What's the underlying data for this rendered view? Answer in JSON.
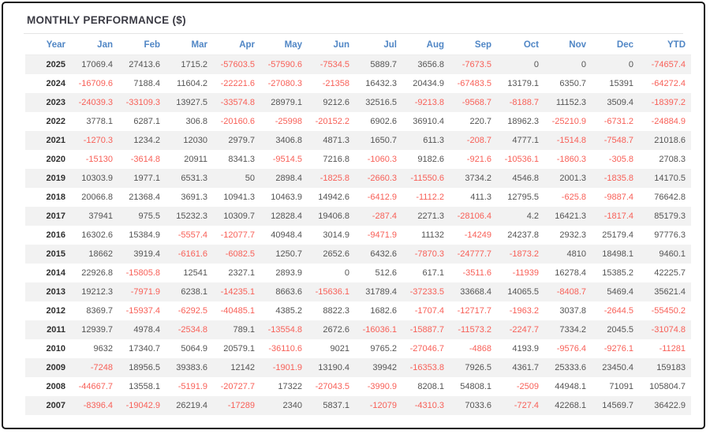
{
  "title": "MONTHLY PERFORMANCE ($)",
  "colors": {
    "header_text": "#5086c5",
    "negative_value": "#f86058",
    "positive_value": "#545454",
    "year_text": "#2f2f2f",
    "row_stripe": "#f2f2f2",
    "frame_border": "#161616"
  },
  "table": {
    "columns": [
      "Year",
      "Jan",
      "Feb",
      "Mar",
      "Apr",
      "May",
      "Jun",
      "Jul",
      "Aug",
      "Sep",
      "Oct",
      "Nov",
      "Dec",
      "YTD"
    ],
    "rows": [
      {
        "year": "2025",
        "values": [
          "17069.4",
          "27413.6",
          "1715.2",
          "-57603.5",
          "-57590.6",
          "-7534.5",
          "5889.7",
          "3656.8",
          "-7673.5",
          "0",
          "0",
          "0",
          "-74657.4"
        ]
      },
      {
        "year": "2024",
        "values": [
          "-16709.6",
          "7188.4",
          "11604.2",
          "-22221.6",
          "-27080.3",
          "-21358",
          "16432.3",
          "20434.9",
          "-67483.5",
          "13179.1",
          "6350.7",
          "15391",
          "-64272.4"
        ]
      },
      {
        "year": "2023",
        "values": [
          "-24039.3",
          "-33109.3",
          "13927.5",
          "-33574.8",
          "28979.1",
          "9212.6",
          "32516.5",
          "-9213.8",
          "-9568.7",
          "-8188.7",
          "11152.3",
          "3509.4",
          "-18397.2"
        ]
      },
      {
        "year": "2022",
        "values": [
          "3778.1",
          "6287.1",
          "306.8",
          "-20160.6",
          "-25998",
          "-20152.2",
          "6902.6",
          "36910.4",
          "220.7",
          "18962.3",
          "-25210.9",
          "-6731.2",
          "-24884.9"
        ]
      },
      {
        "year": "2021",
        "values": [
          "-1270.3",
          "1234.2",
          "12030",
          "2979.7",
          "3406.8",
          "4871.3",
          "1650.7",
          "611.3",
          "-208.7",
          "4777.1",
          "-1514.8",
          "-7548.7",
          "21018.6"
        ]
      },
      {
        "year": "2020",
        "values": [
          "-15130",
          "-3614.8",
          "20911",
          "8341.3",
          "-9514.5",
          "7216.8",
          "-1060.3",
          "9182.6",
          "-921.6",
          "-10536.1",
          "-1860.3",
          "-305.8",
          "2708.3"
        ]
      },
      {
        "year": "2019",
        "values": [
          "10303.9",
          "1977.1",
          "6531.3",
          "50",
          "2898.4",
          "-1825.8",
          "-2660.3",
          "-11550.6",
          "3734.2",
          "4546.8",
          "2001.3",
          "-1835.8",
          "14170.5"
        ]
      },
      {
        "year": "2018",
        "values": [
          "20066.8",
          "21368.4",
          "3691.3",
          "10941.3",
          "10463.9",
          "14942.6",
          "-6412.9",
          "-1112.2",
          "411.3",
          "12795.5",
          "-625.8",
          "-9887.4",
          "76642.8"
        ]
      },
      {
        "year": "2017",
        "values": [
          "37941",
          "975.5",
          "15232.3",
          "10309.7",
          "12828.4",
          "19406.8",
          "-287.4",
          "2271.3",
          "-28106.4",
          "4.2",
          "16421.3",
          "-1817.4",
          "85179.3"
        ]
      },
      {
        "year": "2016",
        "values": [
          "16302.6",
          "15384.9",
          "-5557.4",
          "-12077.7",
          "40948.4",
          "3014.9",
          "-9471.9",
          "11132",
          "-14249",
          "24237.8",
          "2932.3",
          "25179.4",
          "97776.3"
        ]
      },
      {
        "year": "2015",
        "values": [
          "18662",
          "3919.4",
          "-6161.6",
          "-6082.5",
          "1250.7",
          "2652.6",
          "6432.6",
          "-7870.3",
          "-24777.7",
          "-1873.2",
          "4810",
          "18498.1",
          "9460.1"
        ]
      },
      {
        "year": "2014",
        "values": [
          "22926.8",
          "-15805.8",
          "12541",
          "2327.1",
          "2893.9",
          "0",
          "512.6",
          "617.1",
          "-3511.6",
          "-11939",
          "16278.4",
          "15385.2",
          "42225.7"
        ]
      },
      {
        "year": "2013",
        "values": [
          "19212.3",
          "-7971.9",
          "6238.1",
          "-14235.1",
          "8663.6",
          "-15636.1",
          "31789.4",
          "-37233.5",
          "33668.4",
          "14065.5",
          "-8408.7",
          "5469.4",
          "35621.4"
        ]
      },
      {
        "year": "2012",
        "values": [
          "8369.7",
          "-15937.4",
          "-6292.5",
          "-40485.1",
          "4385.2",
          "8822.3",
          "1682.6",
          "-1707.4",
          "-12717.7",
          "-1963.2",
          "3037.8",
          "-2644.5",
          "-55450.2"
        ]
      },
      {
        "year": "2011",
        "values": [
          "12939.7",
          "4978.4",
          "-2534.8",
          "789.1",
          "-13554.8",
          "2672.6",
          "-16036.1",
          "-15887.7",
          "-11573.2",
          "-2247.7",
          "7334.2",
          "2045.5",
          "-31074.8"
        ]
      },
      {
        "year": "2010",
        "values": [
          "9632",
          "17340.7",
          "5064.9",
          "20579.1",
          "-36110.6",
          "9021",
          "9765.2",
          "-27046.7",
          "-4868",
          "4193.9",
          "-9576.4",
          "-9276.1",
          "-11281"
        ]
      },
      {
        "year": "2009",
        "values": [
          "-7248",
          "18956.5",
          "39383.6",
          "12142",
          "-1901.9",
          "13190.4",
          "39942",
          "-16353.8",
          "7926.5",
          "4361.7",
          "25333.6",
          "23450.4",
          "159183"
        ]
      },
      {
        "year": "2008",
        "values": [
          "-44667.7",
          "13558.1",
          "-5191.9",
          "-20727.7",
          "17322",
          "-27043.5",
          "-3990.9",
          "8208.1",
          "54808.1",
          "-2509",
          "44948.1",
          "71091",
          "105804.7"
        ]
      },
      {
        "year": "2007",
        "values": [
          "-8396.4",
          "-19042.9",
          "26219.4",
          "-17289",
          "2340",
          "5837.1",
          "-12079",
          "-4310.3",
          "7033.6",
          "-727.4",
          "42268.1",
          "14569.7",
          "36422.9"
        ]
      }
    ]
  }
}
